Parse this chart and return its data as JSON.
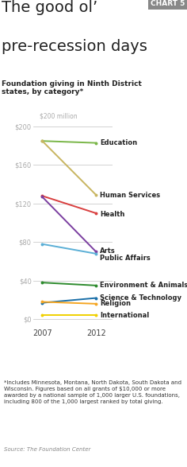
{
  "title_line1": "The good ol’",
  "title_line2": "pre-recession days",
  "subtitle": "Foundation giving in Ninth District\nstates, by category*",
  "chart_label": "CHART 5",
  "ylabel_top": "$200 million",
  "years": [
    2007,
    2012
  ],
  "series": [
    {
      "name": "Education",
      "values": [
        185,
        183
      ],
      "color": "#7ab648"
    },
    {
      "name": "Human Services",
      "values": [
        185,
        129
      ],
      "color": "#c8b560"
    },
    {
      "name": "Health",
      "values": [
        128,
        110
      ],
      "color": "#d93f3f"
    },
    {
      "name": "Arts",
      "values": [
        127,
        70
      ],
      "color": "#7b3fa0"
    },
    {
      "name": "Public Affairs",
      "values": [
        78,
        68
      ],
      "color": "#5bafd6"
    },
    {
      "name": "Environment & Animals",
      "values": [
        38,
        35
      ],
      "color": "#2e8b2e"
    },
    {
      "name": "Science & Technology",
      "values": [
        17,
        22
      ],
      "color": "#1a6fa8"
    },
    {
      "name": "Religion",
      "values": [
        18,
        16
      ],
      "color": "#f5a623"
    },
    {
      "name": "International",
      "values": [
        4,
        4
      ],
      "color": "#f0d000"
    }
  ],
  "yticks": [
    0,
    40,
    80,
    120,
    160,
    200
  ],
  "ylim": [
    -8,
    215
  ],
  "xlim": [
    2006.2,
    2012.8
  ],
  "footnote": "*Includes Minnesota, Montana, North Dakota, South Dakota and\nWisconsin. Figures based on all grants of $10,000 or more\nawarded by a national sample of 1,000 larger U.S. foundations,\nincluding 800 of the 1,000 largest ranked by total giving.",
  "source": "Source: The Foundation Center",
  "bg_color": "#ffffff",
  "grid_color": "#cccccc",
  "title_fontsize": 14,
  "subtitle_fontsize": 6.5,
  "tick_fontsize": 6,
  "label_fontsize": 6,
  "footnote_fontsize": 5,
  "source_fontsize": 5,
  "chart_label_fontsize": 6.5,
  "ylabel_top_color": "#aaaaaa",
  "tick_color": "#aaaaaa",
  "label_y_offsets": {
    "Arts": 2,
    "Public Affairs": -4
  }
}
